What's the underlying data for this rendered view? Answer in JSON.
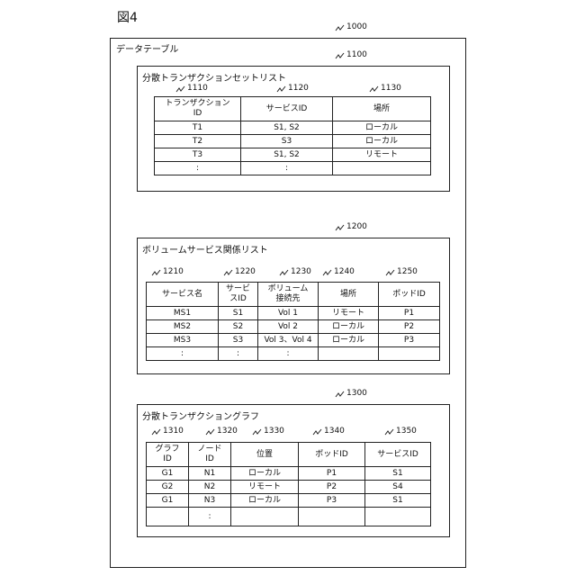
{
  "figure_label": "図4",
  "data_table": {
    "ref": "1000",
    "title": "データテーブル",
    "transaction_set_list": {
      "ref": "1100",
      "title": "分散トランザクションセットリスト",
      "column_refs": [
        "1110",
        "1120",
        "1130"
      ],
      "headers": [
        "トランザクション\nID",
        "サービスID",
        "場所"
      ],
      "rows": [
        [
          "T1",
          "S1, S2",
          "ローカル"
        ],
        [
          "T2",
          "S3",
          "ローカル"
        ],
        [
          "T3",
          "S1, S2",
          "リモート"
        ],
        [
          ":",
          ":",
          ""
        ]
      ]
    },
    "volume_service_list": {
      "ref": "1200",
      "title": "ボリュームサービス関係リスト",
      "column_refs": [
        "1210",
        "1220",
        "1230",
        "1240",
        "1250"
      ],
      "headers": [
        "サービス名",
        "サービ\nスID",
        "ボリューム\n接続先",
        "場所",
        "ポッドID"
      ],
      "rows": [
        [
          "MS1",
          "S1",
          "Vol 1",
          "リモート",
          "P1"
        ],
        [
          "MS2",
          "S2",
          "Vol 2",
          "ローカル",
          "P2"
        ],
        [
          "MS3",
          "S3",
          "Vol 3、Vol 4",
          "ローカル",
          "P3"
        ],
        [
          ":",
          ":",
          ":",
          "",
          ""
        ]
      ]
    },
    "transaction_graph": {
      "ref": "1300",
      "title": "分散トランザクショングラフ",
      "column_refs": [
        "1310",
        "1320",
        "1330",
        "1340",
        "1350"
      ],
      "headers": [
        "グラフ\nID",
        "ノード\nID",
        "位置",
        "ポッドID",
        "サービスID"
      ],
      "rows": [
        [
          "G1",
          "N1",
          "ローカル",
          "P1",
          "S1"
        ],
        [
          "G2",
          "N2",
          "リモート",
          "P2",
          "S4"
        ],
        [
          "G1",
          "N3",
          "ローカル",
          "P3",
          "S1"
        ],
        [
          "",
          ":",
          "",
          "",
          ""
        ]
      ]
    }
  }
}
